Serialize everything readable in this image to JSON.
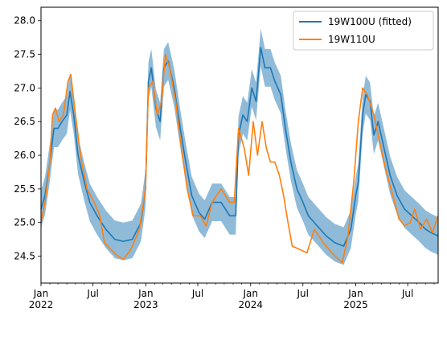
{
  "chart_data": {
    "type": "line",
    "title": "",
    "xlabel": "",
    "ylabel": "",
    "x_range": [
      "2022-01-01",
      "2025-10-15"
    ],
    "ylim": [
      24.1,
      28.2
    ],
    "y_ticks": [
      24.5,
      25.0,
      25.5,
      26.0,
      26.5,
      27.0,
      27.5,
      28.0
    ],
    "y_tick_labels": [
      "24.5",
      "25.0",
      "25.5",
      "26.0",
      "26.5",
      "27.0",
      "27.5",
      "28.0"
    ],
    "x_ticks": [
      {
        "date": "2022-01-01",
        "label": "Jan",
        "sublabel": "2022"
      },
      {
        "date": "2022-07-01",
        "label": "Jul",
        "sublabel": ""
      },
      {
        "date": "2023-01-01",
        "label": "Jan",
        "sublabel": "2023"
      },
      {
        "date": "2023-07-01",
        "label": "Jul",
        "sublabel": ""
      },
      {
        "date": "2024-01-01",
        "label": "Jan",
        "sublabel": "2024"
      },
      {
        "date": "2024-07-01",
        "label": "Jul",
        "sublabel": ""
      },
      {
        "date": "2025-01-01",
        "label": "Jan",
        "sublabel": "2025"
      },
      {
        "date": "2025-07-01",
        "label": "Jul",
        "sublabel": ""
      }
    ],
    "grid": false,
    "legend_position": "top-right",
    "series": [
      {
        "name": "19W100U (fitted)",
        "color": "#1f77b4",
        "band_color": "#1f77b4",
        "band_halfwidth": 0.28,
        "points": [
          [
            "2022-01-01",
            25.2
          ],
          [
            "2022-01-15",
            25.4
          ],
          [
            "2022-02-01",
            25.9
          ],
          [
            "2022-02-15",
            26.4
          ],
          [
            "2022-03-01",
            26.4
          ],
          [
            "2022-03-15",
            26.5
          ],
          [
            "2022-04-01",
            26.6
          ],
          [
            "2022-04-12",
            26.95
          ],
          [
            "2022-04-25",
            26.6
          ],
          [
            "2022-05-10",
            26.0
          ],
          [
            "2022-06-01",
            25.6
          ],
          [
            "2022-06-20",
            25.3
          ],
          [
            "2022-07-15",
            25.1
          ],
          [
            "2022-08-15",
            24.9
          ],
          [
            "2022-09-15",
            24.75
          ],
          [
            "2022-10-15",
            24.72
          ],
          [
            "2022-11-15",
            24.75
          ],
          [
            "2022-12-15",
            25.0
          ],
          [
            "2022-12-31",
            25.5
          ],
          [
            "2023-01-10",
            27.1
          ],
          [
            "2023-01-20",
            27.3
          ],
          [
            "2023-02-05",
            26.7
          ],
          [
            "2023-02-20",
            26.5
          ],
          [
            "2023-03-05",
            27.3
          ],
          [
            "2023-03-20",
            27.4
          ],
          [
            "2023-04-10",
            27.0
          ],
          [
            "2023-05-01",
            26.4
          ],
          [
            "2023-05-20",
            25.9
          ],
          [
            "2023-06-10",
            25.4
          ],
          [
            "2023-07-05",
            25.15
          ],
          [
            "2023-07-25",
            25.05
          ],
          [
            "2023-08-20",
            25.3
          ],
          [
            "2023-09-20",
            25.3
          ],
          [
            "2023-10-20",
            25.1
          ],
          [
            "2023-11-10",
            25.1
          ],
          [
            "2023-11-20",
            26.3
          ],
          [
            "2023-12-05",
            26.6
          ],
          [
            "2023-12-20",
            26.5
          ],
          [
            "2024-01-05",
            27.0
          ],
          [
            "2024-01-20",
            26.8
          ],
          [
            "2024-02-05",
            27.6
          ],
          [
            "2024-02-20",
            27.3
          ],
          [
            "2024-03-10",
            27.3
          ],
          [
            "2024-03-25",
            27.1
          ],
          [
            "2024-04-15",
            26.9
          ],
          [
            "2024-05-01",
            26.4
          ],
          [
            "2024-05-20",
            25.9
          ],
          [
            "2024-06-10",
            25.5
          ],
          [
            "2024-07-01",
            25.3
          ],
          [
            "2024-07-20",
            25.1
          ],
          [
            "2024-08-20",
            24.95
          ],
          [
            "2024-09-20",
            24.8
          ],
          [
            "2024-10-20",
            24.7
          ],
          [
            "2024-11-20",
            24.65
          ],
          [
            "2024-12-15",
            24.9
          ],
          [
            "2025-01-01",
            25.4
          ],
          [
            "2025-01-10",
            25.6
          ],
          [
            "2025-01-25",
            26.6
          ],
          [
            "2025-02-05",
            26.9
          ],
          [
            "2025-02-20",
            26.8
          ],
          [
            "2025-03-05",
            26.3
          ],
          [
            "2025-03-20",
            26.5
          ],
          [
            "2025-04-10",
            26.1
          ],
          [
            "2025-05-01",
            25.7
          ],
          [
            "2025-05-25",
            25.4
          ],
          [
            "2025-06-20",
            25.2
          ],
          [
            "2025-07-15",
            25.1
          ],
          [
            "2025-08-10",
            25.0
          ],
          [
            "2025-09-01",
            24.9
          ],
          [
            "2025-09-20",
            24.85
          ],
          [
            "2025-10-15",
            24.8
          ]
        ]
      },
      {
        "name": "19W110U",
        "color": "#ff7f0e",
        "points": [
          [
            "2022-01-01",
            25.0
          ],
          [
            "2022-01-15",
            25.3
          ],
          [
            "2022-02-01",
            25.9
          ],
          [
            "2022-02-10",
            26.6
          ],
          [
            "2022-02-20",
            26.7
          ],
          [
            "2022-03-05",
            26.5
          ],
          [
            "2022-03-20",
            26.6
          ],
          [
            "2022-04-05",
            27.1
          ],
          [
            "2022-04-15",
            27.2
          ],
          [
            "2022-05-01",
            26.6
          ],
          [
            "2022-05-20",
            25.95
          ],
          [
            "2022-06-10",
            25.5
          ],
          [
            "2022-07-05",
            25.3
          ],
          [
            "2022-07-25",
            25.1
          ],
          [
            "2022-08-10",
            24.7
          ],
          [
            "2022-09-01",
            24.6
          ],
          [
            "2022-09-20",
            24.52
          ],
          [
            "2022-10-15",
            24.45
          ],
          [
            "2022-11-10",
            24.6
          ],
          [
            "2022-12-10",
            24.9
          ],
          [
            "2022-12-31",
            25.5
          ],
          [
            "2023-01-10",
            27.0
          ],
          [
            "2023-01-25",
            27.1
          ],
          [
            "2023-02-10",
            26.6
          ],
          [
            "2023-02-25",
            26.8
          ],
          [
            "2023-03-10",
            27.5
          ],
          [
            "2023-03-25",
            27.3
          ],
          [
            "2023-04-15",
            26.8
          ],
          [
            "2023-05-05",
            26.1
          ],
          [
            "2023-05-25",
            25.5
          ],
          [
            "2023-06-15",
            25.1
          ],
          [
            "2023-07-10",
            25.1
          ],
          [
            "2023-07-30",
            24.95
          ],
          [
            "2023-08-20",
            25.3
          ],
          [
            "2023-09-20",
            25.5
          ],
          [
            "2023-10-20",
            25.3
          ],
          [
            "2023-11-05",
            25.3
          ],
          [
            "2023-11-20",
            26.4
          ],
          [
            "2023-12-10",
            26.1
          ],
          [
            "2023-12-25",
            25.7
          ],
          [
            "2024-01-10",
            26.5
          ],
          [
            "2024-01-25",
            26.0
          ],
          [
            "2024-02-10",
            26.5
          ],
          [
            "2024-02-25",
            26.1
          ],
          [
            "2024-03-10",
            25.9
          ],
          [
            "2024-03-25",
            25.9
          ],
          [
            "2024-04-10",
            25.7
          ],
          [
            "2024-04-25",
            25.4
          ],
          [
            "2024-05-10",
            25.0
          ],
          [
            "2024-05-25",
            24.65
          ],
          [
            "2024-06-20",
            24.6
          ],
          [
            "2024-07-15",
            24.55
          ],
          [
            "2024-08-10",
            24.9
          ],
          [
            "2024-09-10",
            24.7
          ],
          [
            "2024-10-10",
            24.55
          ],
          [
            "2024-11-15",
            24.4
          ],
          [
            "2024-12-05",
            24.8
          ],
          [
            "2024-12-25",
            25.6
          ],
          [
            "2025-01-10",
            26.5
          ],
          [
            "2025-01-25",
            27.0
          ],
          [
            "2025-02-10",
            26.9
          ],
          [
            "2025-03-05",
            26.6
          ],
          [
            "2025-03-25",
            26.2
          ],
          [
            "2025-04-15",
            25.8
          ],
          [
            "2025-05-10",
            25.4
          ],
          [
            "2025-06-01",
            25.05
          ],
          [
            "2025-06-20",
            24.95
          ],
          [
            "2025-07-10",
            25.0
          ],
          [
            "2025-07-25",
            25.2
          ],
          [
            "2025-08-15",
            24.9
          ],
          [
            "2025-09-05",
            25.05
          ],
          [
            "2025-09-25",
            24.85
          ],
          [
            "2025-10-15",
            25.1
          ]
        ]
      }
    ]
  }
}
